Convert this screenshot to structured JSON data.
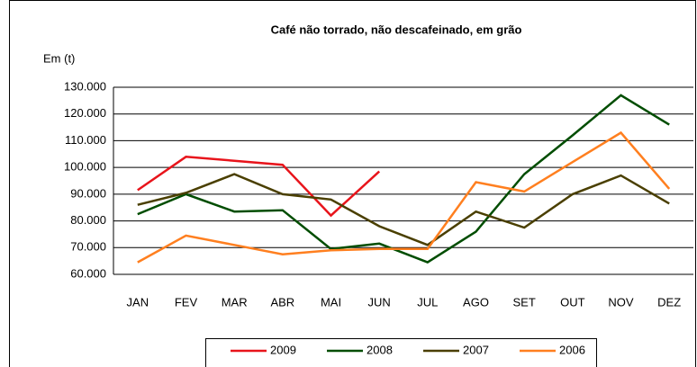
{
  "chart_data": {
    "type": "line",
    "title": "Café não torrado, não descafeinado, em grão",
    "y_label": "Em (t)",
    "categories": [
      "JAN",
      "FEV",
      "MAR",
      "ABR",
      "MAI",
      "JUN",
      "JUL",
      "AGO",
      "SET",
      "OUT",
      "NOV",
      "DEZ"
    ],
    "series": [
      {
        "name": "2009",
        "color": "#e8141b",
        "values": [
          91500,
          104000,
          102500,
          101000,
          82000,
          98500,
          null,
          null,
          null,
          null,
          null,
          null
        ]
      },
      {
        "name": "2008",
        "color": "#004d00",
        "values": [
          82500,
          90000,
          83500,
          84000,
          69500,
          71500,
          64500,
          76000,
          97500,
          112000,
          127000,
          116000
        ]
      },
      {
        "name": "2007",
        "color": "#4a3f00",
        "values": [
          86000,
          90500,
          97500,
          90000,
          88000,
          78000,
          71000,
          83500,
          77500,
          90000,
          97000,
          86500
        ]
      },
      {
        "name": "2006",
        "color": "#ff7f1f",
        "values": [
          64500,
          74500,
          71000,
          67500,
          69000,
          69500,
          69500,
          94500,
          91000,
          102000,
          113000,
          92000
        ]
      }
    ],
    "ylim": [
      60000,
      130000
    ],
    "yticks": [
      {
        "value": 60000,
        "label": "60.000"
      },
      {
        "value": 70000,
        "label": "70.000"
      },
      {
        "value": 80000,
        "label": "80.000"
      },
      {
        "value": 90000,
        "label": "90.000"
      },
      {
        "value": 100000,
        "label": "100.000"
      },
      {
        "value": 110000,
        "label": "110.000"
      },
      {
        "value": 120000,
        "label": "120.000"
      },
      {
        "value": 130000,
        "label": "130.000"
      }
    ],
    "grid": true,
    "legend": "bottom"
  }
}
